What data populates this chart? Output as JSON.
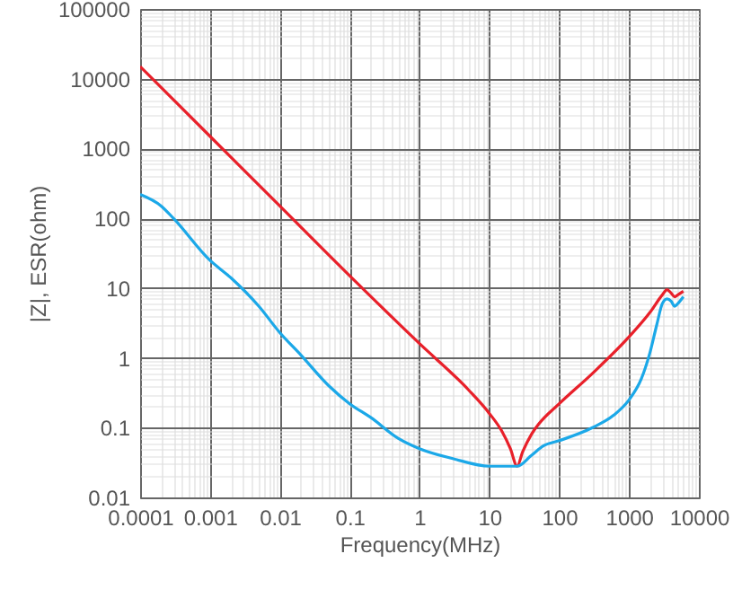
{
  "chart_data": {
    "type": "line",
    "xlabel": "Frequency(MHz)",
    "ylabel": "|Z|, ESR(ohm)",
    "log": "xy",
    "grid": true,
    "marker": "none",
    "line_style": "solid",
    "xlim": [
      0.0001,
      10000
    ],
    "ylim": [
      0.01,
      100000
    ],
    "xticks": [
      0.0001,
      {
        "value": 0.0002,
        "label": null
      },
      {
        "value": 0.0003,
        "label": null
      },
      {
        "value": 0.0004,
        "label": null
      },
      {
        "value": 0.0005,
        "label": null
      },
      {
        "value": 0.0006,
        "label": null
      },
      {
        "value": 0.0007,
        "label": null
      },
      {
        "value": 0.0008,
        "label": null
      },
      {
        "value": 0.0009,
        "label": null
      },
      0.001,
      {
        "value": 0.002,
        "label": null
      },
      {
        "value": 0.003,
        "label": null
      },
      {
        "value": 0.004,
        "label": null
      },
      {
        "value": 0.005,
        "label": null
      },
      {
        "value": 0.006,
        "label": null
      },
      {
        "value": 0.007,
        "label": null
      },
      {
        "value": 0.008,
        "label": null
      },
      {
        "value": 0.009,
        "label": null
      },
      0.01,
      {
        "value": 0.02,
        "label": null
      },
      {
        "value": 0.03,
        "label": null
      },
      {
        "value": 0.04,
        "label": null
      },
      {
        "value": 0.05,
        "label": null
      },
      {
        "value": 0.06,
        "label": null
      },
      {
        "value": 0.07,
        "label": null
      },
      {
        "value": 0.08,
        "label": null
      },
      {
        "value": 0.09,
        "label": null
      },
      0.1,
      {
        "value": 0.2,
        "label": null
      },
      {
        "value": 0.3,
        "label": null
      },
      {
        "value": 0.4,
        "label": null
      },
      {
        "value": 0.5,
        "label": null
      },
      {
        "value": 0.6,
        "label": null
      },
      {
        "value": 0.7,
        "label": null
      },
      {
        "value": 0.8,
        "label": null
      },
      {
        "value": 0.9,
        "label": null
      },
      1,
      {
        "value": 2,
        "label": null
      },
      {
        "value": 3,
        "label": null
      },
      {
        "value": 4,
        "label": null
      },
      {
        "value": 5,
        "label": null
      },
      {
        "value": 6,
        "label": null
      },
      {
        "value": 7,
        "label": null
      },
      {
        "value": 8,
        "label": null
      },
      {
        "value": 9,
        "label": null
      },
      10,
      {
        "value": 20,
        "label": null
      },
      {
        "value": 30,
        "label": null
      },
      {
        "value": 40,
        "label": null
      },
      {
        "value": 50,
        "label": null
      },
      {
        "value": 60,
        "label": null
      },
      {
        "value": 70,
        "label": null
      },
      {
        "value": 80,
        "label": null
      },
      {
        "value": 90,
        "label": null
      },
      100,
      {
        "value": 200,
        "label": null
      },
      {
        "value": 300,
        "label": null
      },
      {
        "value": 400,
        "label": null
      },
      {
        "value": 500,
        "label": null
      },
      {
        "value": 600,
        "label": null
      },
      {
        "value": 700,
        "label": null
      },
      {
        "value": 800,
        "label": null
      },
      {
        "value": 900,
        "label": null
      },
      1000,
      {
        "value": 2000,
        "label": null
      },
      {
        "value": 3000,
        "label": null
      },
      {
        "value": 4000,
        "label": null
      },
      {
        "value": 5000,
        "label": null
      },
      {
        "value": 6000,
        "label": null
      },
      {
        "value": 7000,
        "label": null
      },
      {
        "value": 8000,
        "label": null
      },
      {
        "value": 9000,
        "label": null
      },
      10000
    ],
    "yticks": [
      0.01,
      {
        "value": 0.02,
        "label": null
      },
      {
        "value": 0.03,
        "label": null
      },
      {
        "value": 0.04,
        "label": null
      },
      {
        "value": 0.05,
        "label": null
      },
      {
        "value": 0.06,
        "label": null
      },
      {
        "value": 0.07,
        "label": null
      },
      {
        "value": 0.08,
        "label": null
      },
      {
        "value": 0.09,
        "label": null
      },
      0.1,
      {
        "value": 0.2,
        "label": null
      },
      {
        "value": 0.3,
        "label": null
      },
      {
        "value": 0.4,
        "label": null
      },
      {
        "value": 0.5,
        "label": null
      },
      {
        "value": 0.6,
        "label": null
      },
      {
        "value": 0.7,
        "label": null
      },
      {
        "value": 0.8,
        "label": null
      },
      {
        "value": 0.9,
        "label": null
      },
      1,
      {
        "value": 2,
        "label": null
      },
      {
        "value": 3,
        "label": null
      },
      {
        "value": 4,
        "label": null
      },
      {
        "value": 5,
        "label": null
      },
      {
        "value": 6,
        "label": null
      },
      {
        "value": 7,
        "label": null
      },
      {
        "value": 8,
        "label": null
      },
      {
        "value": 9,
        "label": null
      },
      10,
      {
        "value": 20,
        "label": null
      },
      {
        "value": 30,
        "label": null
      },
      {
        "value": 40,
        "label": null
      },
      {
        "value": 50,
        "label": null
      },
      {
        "value": 60,
        "label": null
      },
      {
        "value": 70,
        "label": null
      },
      {
        "value": 80,
        "label": null
      },
      {
        "value": 90,
        "label": null
      },
      100,
      {
        "value": 200,
        "label": null
      },
      {
        "value": 300,
        "label": null
      },
      {
        "value": 400,
        "label": null
      },
      {
        "value": 500,
        "label": null
      },
      {
        "value": 600,
        "label": null
      },
      {
        "value": 700,
        "label": null
      },
      {
        "value": 800,
        "label": null
      },
      {
        "value": 900,
        "label": null
      },
      1000,
      {
        "value": 2000,
        "label": null
      },
      {
        "value": 3000,
        "label": null
      },
      {
        "value": 4000,
        "label": null
      },
      {
        "value": 5000,
        "label": null
      },
      {
        "value": 6000,
        "label": null
      },
      {
        "value": 7000,
        "label": null
      },
      {
        "value": 8000,
        "label": null
      },
      {
        "value": 9000,
        "label": null
      },
      10000,
      {
        "value": 20000,
        "label": null
      },
      {
        "value": 30000,
        "label": null
      },
      {
        "value": 40000,
        "label": null
      },
      {
        "value": 50000,
        "label": null
      },
      {
        "value": 60000,
        "label": null
      },
      {
        "value": 70000,
        "label": null
      },
      {
        "value": 80000,
        "label": null
      },
      {
        "value": 90000,
        "label": null
      },
      100000
    ],
    "series": [
      {
        "color": "#e8202a",
        "x": [
          0.0001,
          0.001,
          0.01,
          0.1,
          1,
          5,
          10,
          15,
          20,
          25,
          30,
          40,
          50,
          100,
          300,
          1000,
          2000,
          3000,
          3500,
          4000,
          4500,
          5000,
          6000
        ],
        "values": [
          15000,
          1500,
          150,
          15,
          1.6,
          0.35,
          0.16,
          0.09,
          0.05,
          0.028,
          0.045,
          0.08,
          0.11,
          0.22,
          0.6,
          2,
          4.5,
          8,
          9.5,
          8.5,
          7.5,
          8,
          9
        ]
      },
      {
        "color": "#1ba8e8",
        "x": [
          0.0001,
          0.0002,
          0.0003,
          0.001,
          0.002,
          0.005,
          0.01,
          0.02,
          0.05,
          0.1,
          0.2,
          0.5,
          1,
          3,
          10,
          25,
          40,
          60,
          100,
          300,
          600,
          1000,
          1500,
          2000,
          2500,
          3000,
          3500,
          4000,
          4500,
          5000,
          6000
        ],
        "values": [
          220,
          150,
          100,
          25,
          14,
          5.5,
          2.3,
          1.1,
          0.4,
          0.22,
          0.14,
          0.07,
          0.05,
          0.036,
          0.028,
          0.028,
          0.04,
          0.055,
          0.065,
          0.1,
          0.15,
          0.25,
          0.5,
          1.2,
          3,
          6,
          7,
          6.5,
          5.5,
          6,
          7.5
        ]
      }
    ]
  }
}
